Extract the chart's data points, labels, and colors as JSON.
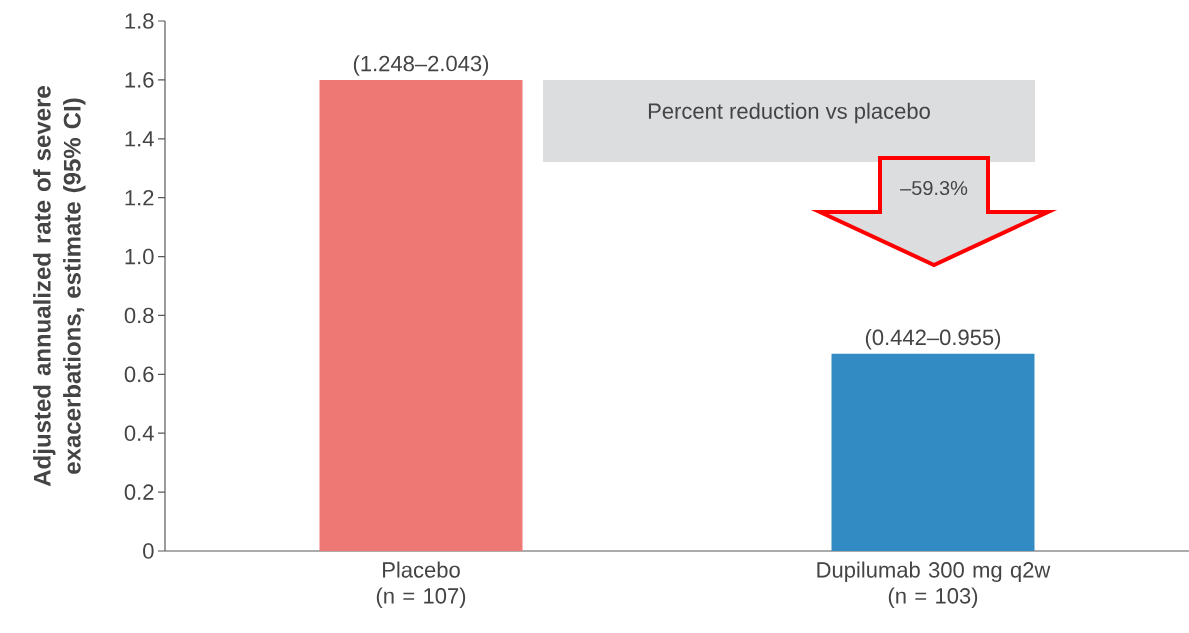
{
  "chart_data": {
    "type": "bar",
    "ylabel": "Adjusted annualized rate of severe exacerbations, estimate (95% CI)",
    "categories": [
      "Placebo\n(n = 107)",
      "Dupilumab 300 mg q2w\n(n = 103)"
    ],
    "values": [
      1.6,
      0.67
    ],
    "colors": [
      "#ee7873",
      "#328bc2"
    ],
    "value_labels": [
      "(1.248–2.043)",
      "(0.442–0.955)"
    ],
    "ylim": [
      0,
      1.8
    ],
    "yticks": [
      {
        "value": 0,
        "label": "0"
      },
      0.2,
      0.4,
      0.6,
      0.8,
      {
        "value": 1,
        "label": "1.0"
      },
      1.2,
      1.4,
      1.6,
      1.8
    ],
    "annotations": [
      "Percent reduction vs placebo",
      "–59.3%"
    ]
  }
}
